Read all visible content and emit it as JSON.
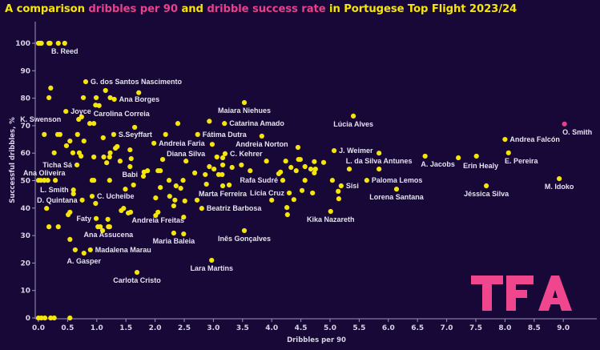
{
  "title": {
    "parts": [
      {
        "text": "A comparison ",
        "color": "#f5e50a"
      },
      {
        "text": "dribbles per 90",
        "color": "#e8408a"
      },
      {
        "text": " and ",
        "color": "#f5e50a"
      },
      {
        "text": "dribble success rate",
        "color": "#e8408a"
      },
      {
        "text": " in Portugese Top Flight 2023/24",
        "color": "#f5e50a"
      }
    ]
  },
  "logo": {
    "text": "TFA",
    "color": "#f0468e"
  },
  "colors": {
    "background": "#170838",
    "point": "#f5e50a",
    "highlight": "#e8408a",
    "axis": "#9d95bd"
  },
  "chart_data": {
    "type": "scatter",
    "xlabel": "Dribbles per 90",
    "ylabel": "Successful dribbles, %",
    "xlim": [
      0,
      9.3
    ],
    "ylim": [
      0,
      105
    ],
    "xticks": [
      "0.0",
      "0.5",
      "1.0",
      "1.5",
      "2.0",
      "2.5",
      "3.0",
      "3.5",
      "4.0",
      "4.5",
      "5.0",
      "5.5",
      "6.0",
      "6.5",
      "7.0",
      "7.5",
      "8.0",
      "8.5",
      "9.0"
    ],
    "yticks": [
      "0",
      "10",
      "20",
      "30",
      "40",
      "50",
      "60",
      "70",
      "80",
      "90",
      "100"
    ],
    "grid": false,
    "labeled_points": [
      {
        "name": "B. Reed",
        "x": 0.45,
        "y": 100,
        "label_position": "below"
      },
      {
        "name": "G. dos Santos Nascimento",
        "x": 0.81,
        "y": 86,
        "label_position": "right"
      },
      {
        "name": "Ana Borges",
        "x": 1.3,
        "y": 79.6,
        "label_position": "right"
      },
      {
        "name": "Joyce",
        "x": 0.47,
        "y": 75.2,
        "label_position": "right"
      },
      {
        "name": "K. Swenson",
        "x": 0.69,
        "y": 72.3,
        "label_position": "left"
      },
      {
        "name": "Carolina Correia",
        "x": 1.04,
        "y": 77.3,
        "label_position": "below"
      },
      {
        "name": "S.Seyffart",
        "x": 1.29,
        "y": 66.8,
        "label_position": "right"
      },
      {
        "name": "Andreia Faria",
        "x": 1.98,
        "y": 63.6,
        "label_position": "right"
      },
      {
        "name": "Diana Silva",
        "x": 2.53,
        "y": 57.1,
        "label_position": "above"
      },
      {
        "name": "Fátima Dutra",
        "x": 2.73,
        "y": 66.8,
        "label_position": "right"
      },
      {
        "name": "Maiara Niehues",
        "x": 3.53,
        "y": 78.4,
        "label_position": "below"
      },
      {
        "name": "Catarina Amado",
        "x": 3.19,
        "y": 70.8,
        "label_position": "right"
      },
      {
        "name": "Andreia Norton",
        "x": 3.83,
        "y": 66.2,
        "label_position": "below"
      },
      {
        "name": "C. Kehrer",
        "x": 3.2,
        "y": 59.8,
        "label_position": "right"
      },
      {
        "name": "Rafa Sudré",
        "x": 4.19,
        "y": 50.1,
        "label_position": "left"
      },
      {
        "name": "Lícia Cruz",
        "x": 4.3,
        "y": 45.5,
        "label_position": "left"
      },
      {
        "name": "Marta Ferreira",
        "x": 3.16,
        "y": 48.1,
        "label_position": "below"
      },
      {
        "name": "Beatriz Barbosa",
        "x": 2.8,
        "y": 39.9,
        "label_position": "right"
      },
      {
        "name": "Inês Gonçalves",
        "x": 3.53,
        "y": 31.8,
        "label_position": "below"
      },
      {
        "name": "Lara Martins",
        "x": 2.97,
        "y": 21.0,
        "label_position": "below"
      },
      {
        "name": "Carlota Cristo",
        "x": 1.69,
        "y": 16.6,
        "label_position": "below"
      },
      {
        "name": "Maria Baleia",
        "x": 2.32,
        "y": 30.9,
        "label_position": "below"
      },
      {
        "name": "Andreia Freitas",
        "x": 2.05,
        "y": 38.5,
        "label_position": "below"
      },
      {
        "name": "Ana Assucena",
        "x": 1.2,
        "y": 33.2,
        "label_position": "below"
      },
      {
        "name": "Madalena Marau",
        "x": 0.89,
        "y": 24.8,
        "label_position": "right"
      },
      {
        "name": "A. Gasper",
        "x": 0.78,
        "y": 23.6,
        "label_position": "below"
      },
      {
        "name": "Faty",
        "x": 0.99,
        "y": 36.2,
        "label_position": "left"
      },
      {
        "name": "C. Ucheibe",
        "x": 0.92,
        "y": 44.3,
        "label_position": "right"
      },
      {
        "name": "D. Quintana",
        "x": 0.75,
        "y": 42.9,
        "label_position": "left"
      },
      {
        "name": "L. Smith",
        "x": 0.6,
        "y": 46.6,
        "label_position": "left"
      },
      {
        "name": "Ana Oliveira",
        "x": 0.1,
        "y": 50.1,
        "label_position": "above"
      },
      {
        "name": "Ticha Sá",
        "x": 0.66,
        "y": 55.7,
        "label_position": "left"
      },
      {
        "name": "Babi",
        "x": 1.57,
        "y": 55.1,
        "label_position": "below"
      },
      {
        "name": "Lúcia Alves",
        "x": 5.4,
        "y": 73.5,
        "label_position": "below"
      },
      {
        "name": "J. Weimer",
        "x": 5.07,
        "y": 60.9,
        "label_position": "right"
      },
      {
        "name": "L. da Silva Antunes",
        "x": 5.84,
        "y": 60.0,
        "label_position": "below"
      },
      {
        "name": "A. Jacobs",
        "x": 6.63,
        "y": 58.9,
        "label_position": "below"
      },
      {
        "name": "Erin Healy",
        "x": 7.2,
        "y": 58.3,
        "label_position": "below"
      },
      {
        "name": "Andrea Falcón",
        "x": 8.0,
        "y": 65.0,
        "label_position": "right"
      },
      {
        "name": "E. Pereira",
        "x": 8.06,
        "y": 60.1,
        "label_position": "below"
      },
      {
        "name": "O. Smith",
        "x": 9.02,
        "y": 70.6,
        "label_position": "below",
        "highlight": true
      },
      {
        "name": "M. Idoko",
        "x": 8.93,
        "y": 50.7,
        "label_position": "below"
      },
      {
        "name": "Jéssica Silva",
        "x": 7.68,
        "y": 48.1,
        "label_position": "below"
      },
      {
        "name": "Paloma Lemos",
        "x": 5.63,
        "y": 50.1,
        "label_position": "right"
      },
      {
        "name": "Lorena Santana",
        "x": 6.14,
        "y": 46.9,
        "label_position": "below"
      },
      {
        "name": "Sisi",
        "x": 5.19,
        "y": 48.1,
        "label_position": "right"
      },
      {
        "name": "Kika Nazareth",
        "x": 5.01,
        "y": 38.8,
        "label_position": "below"
      }
    ],
    "other_points": [
      [
        0,
        100
      ],
      [
        0.02,
        100
      ],
      [
        0.04,
        100
      ],
      [
        0.05,
        100
      ],
      [
        0.18,
        100
      ],
      [
        0.2,
        100
      ],
      [
        0.34,
        100
      ],
      [
        0.21,
        83.7
      ],
      [
        0.18,
        80.2
      ],
      [
        0.74,
        73.2
      ],
      [
        0.77,
        80.2
      ],
      [
        0.99,
        80.2
      ],
      [
        0.98,
        77.5
      ],
      [
        1.15,
        82.8
      ],
      [
        1.23,
        80.2
      ],
      [
        1.72,
        82
      ],
      [
        0.88,
        70.8
      ],
      [
        0.95,
        70.8
      ],
      [
        0.1,
        66.8
      ],
      [
        0.33,
        66.8
      ],
      [
        0.37,
        66.8
      ],
      [
        0.67,
        66.8
      ],
      [
        0.54,
        64.4
      ],
      [
        0.48,
        62.7
      ],
      [
        0.78,
        64.4
      ],
      [
        1.11,
        65.6
      ],
      [
        1.65,
        69.4
      ],
      [
        2.18,
        66.8
      ],
      [
        2.39,
        70.8
      ],
      [
        2.93,
        71.6
      ],
      [
        2.98,
        63.2
      ],
      [
        0.27,
        60.1
      ],
      [
        0.59,
        60.1
      ],
      [
        0.7,
        60.1
      ],
      [
        0.73,
        58.9
      ],
      [
        0.95,
        58.6
      ],
      [
        1.12,
        58.6
      ],
      [
        1.17,
        56.5
      ],
      [
        1.23,
        60.1
      ],
      [
        1.22,
        58.6
      ],
      [
        1.32,
        61.8
      ],
      [
        1.35,
        62.4
      ],
      [
        1.4,
        57.1
      ],
      [
        1.57,
        61.2
      ],
      [
        1.59,
        58
      ],
      [
        2.13,
        57.7
      ],
      [
        2.68,
        52.8
      ],
      [
        2.86,
        52.2
      ],
      [
        2.93,
        55.1
      ],
      [
        3.01,
        54.2
      ],
      [
        3.06,
        58.6
      ],
      [
        3.16,
        58.3
      ],
      [
        3.16,
        55.7
      ],
      [
        3.32,
        54.8
      ],
      [
        3.48,
        55.7
      ],
      [
        3.63,
        53.6
      ],
      [
        3.91,
        57.1
      ],
      [
        4.24,
        57.1
      ],
      [
        4.12,
        52.5
      ],
      [
        4.15,
        53.1
      ],
      [
        4.33,
        54.8
      ],
      [
        4.42,
        53.6
      ],
      [
        4.45,
        62.1
      ],
      [
        4.46,
        57.7
      ],
      [
        3.09,
        52.2
      ],
      [
        3.15,
        52.2
      ],
      [
        1.81,
        53.1
      ],
      [
        1.87,
        53.6
      ],
      [
        2.05,
        53.6
      ],
      [
        2.09,
        53.6
      ],
      [
        0,
        50.1
      ],
      [
        0.04,
        50.1
      ],
      [
        0.1,
        50.1
      ],
      [
        0.16,
        50.1
      ],
      [
        0.29,
        50.1
      ],
      [
        0.6,
        45.2
      ],
      [
        0.14,
        39.9
      ],
      [
        0.18,
        33.2
      ],
      [
        0.34,
        33.2
      ],
      [
        0.51,
        37.6
      ],
      [
        0.54,
        38.5
      ],
      [
        0.54,
        28.6
      ],
      [
        0.63,
        24.8
      ],
      [
        0.92,
        50.1
      ],
      [
        0.95,
        50.1
      ],
      [
        0.98,
        41.7
      ],
      [
        1.02,
        33.2
      ],
      [
        1.06,
        33.2
      ],
      [
        1.1,
        31.8
      ],
      [
        1.19,
        35.9
      ],
      [
        1.22,
        33.2
      ],
      [
        1.22,
        50.1
      ],
      [
        1.42,
        39.1
      ],
      [
        1.46,
        39.9
      ],
      [
        1.54,
        38.2
      ],
      [
        1.58,
        38.5
      ],
      [
        1.49,
        46.9
      ],
      [
        1.63,
        48.4
      ],
      [
        1.8,
        51.6
      ],
      [
        2.01,
        43.7
      ],
      [
        2.01,
        37.3
      ],
      [
        2.09,
        47.5
      ],
      [
        2.24,
        50.1
      ],
      [
        2.25,
        44.3
      ],
      [
        2.36,
        48.1
      ],
      [
        2.34,
        42.9
      ],
      [
        2.32,
        40.8
      ],
      [
        2.49,
        30.6
      ],
      [
        2.44,
        47.2
      ],
      [
        2.48,
        50.1
      ],
      [
        2.51,
        42.6
      ],
      [
        2.49,
        36.7
      ],
      [
        2.72,
        42.9
      ],
      [
        2.88,
        48.7
      ],
      [
        3.27,
        48.4
      ],
      [
        4.0,
        42.9
      ],
      [
        4.38,
        43.1
      ],
      [
        4.26,
        40.2
      ],
      [
        4.27,
        37.6
      ],
      [
        4.49,
        57.7
      ],
      [
        4.57,
        55.1
      ],
      [
        4.67,
        54.2
      ],
      [
        4.75,
        54.2
      ],
      [
        4.73,
        52.8
      ],
      [
        4.73,
        56.9
      ],
      [
        4.89,
        56.6
      ],
      [
        4.57,
        50.1
      ],
      [
        4.52,
        46.4
      ],
      [
        4.7,
        45.5
      ],
      [
        5.04,
        50.1
      ],
      [
        5.14,
        46.1
      ],
      [
        5.15,
        43.4
      ],
      [
        5.33,
        54.2
      ],
      [
        5.84,
        54.2
      ],
      [
        7.51,
        58.9
      ],
      [
        0,
        0
      ],
      [
        0.05,
        0
      ],
      [
        0.11,
        0
      ],
      [
        0.21,
        0
      ],
      [
        0.27,
        0
      ],
      [
        0.54,
        0
      ]
    ]
  }
}
